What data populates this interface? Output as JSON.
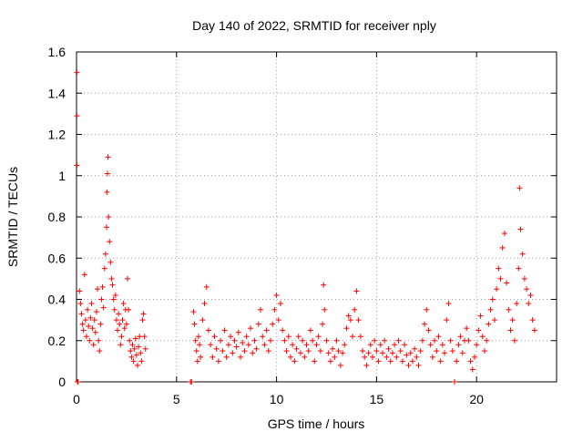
{
  "chart_data": {
    "type": "scatter",
    "title": "Day 140 of 2022, SRMTID for receiver nply",
    "xlabel": "GPS time / hours",
    "ylabel": "SRMTID / TECUs",
    "xlim": [
      0,
      24
    ],
    "ylim": [
      0,
      1.6
    ],
    "xticks": [
      0,
      5,
      10,
      15,
      20
    ],
    "xtick_labels": [
      "0",
      "5",
      "10",
      "15",
      "20"
    ],
    "yticks": [
      0,
      0.2,
      0.4,
      0.6,
      0.8,
      1.0,
      1.2,
      1.4,
      1.6
    ],
    "ytick_labels": [
      "0",
      "0.2",
      "0.4",
      "0.6",
      "0.8",
      "1",
      "1.2",
      "1.4",
      "1.6"
    ],
    "grid": true,
    "marker": "plus",
    "series": [
      {
        "name": "SRMTID",
        "color": "#ff0000",
        "points": [
          [
            0.02,
            1.5
          ],
          [
            0.02,
            1.29
          ],
          [
            0.02,
            1.05
          ],
          [
            0.05,
            0.0
          ],
          [
            0.08,
            0.0
          ],
          [
            0.15,
            0.44
          ],
          [
            0.2,
            0.38
          ],
          [
            0.25,
            0.33
          ],
          [
            0.3,
            0.28
          ],
          [
            0.35,
            0.25
          ],
          [
            0.4,
            0.52
          ],
          [
            0.45,
            0.3
          ],
          [
            0.5,
            0.22
          ],
          [
            0.55,
            0.35
          ],
          [
            0.6,
            0.27
          ],
          [
            0.65,
            0.2
          ],
          [
            0.7,
            0.31
          ],
          [
            0.75,
            0.38
          ],
          [
            0.8,
            0.26
          ],
          [
            0.85,
            0.18
          ],
          [
            0.9,
            0.3
          ],
          [
            0.95,
            0.24
          ],
          [
            1.0,
            0.34
          ],
          [
            1.05,
            0.45
          ],
          [
            1.1,
            0.2
          ],
          [
            1.15,
            0.15
          ],
          [
            1.2,
            0.28
          ],
          [
            1.25,
            0.4
          ],
          [
            1.3,
            0.46
          ],
          [
            1.35,
            0.36
          ],
          [
            1.4,
            0.55
          ],
          [
            1.45,
            0.62
          ],
          [
            1.5,
            0.75
          ],
          [
            1.52,
            0.92
          ],
          [
            1.55,
            1.01
          ],
          [
            1.57,
            1.09
          ],
          [
            1.6,
            0.8
          ],
          [
            1.65,
            0.68
          ],
          [
            1.7,
            0.58
          ],
          [
            1.75,
            0.5
          ],
          [
            1.8,
            0.47
          ],
          [
            1.85,
            0.4
          ],
          [
            1.9,
            0.35
          ],
          [
            1.95,
            0.42
          ],
          [
            2.0,
            0.3
          ],
          [
            2.05,
            0.25
          ],
          [
            2.1,
            0.33
          ],
          [
            2.15,
            0.28
          ],
          [
            2.2,
            0.18
          ],
          [
            2.25,
            0.22
          ],
          [
            2.3,
            0.3
          ],
          [
            2.35,
            0.38
          ],
          [
            2.4,
            0.26
          ],
          [
            2.45,
            0.35
          ],
          [
            2.5,
            0.28
          ],
          [
            2.55,
            0.5
          ],
          [
            2.6,
            0.35
          ],
          [
            2.65,
            0.2
          ],
          [
            2.7,
            0.15
          ],
          [
            2.75,
            0.12
          ],
          [
            2.8,
            0.18
          ],
          [
            2.85,
            0.1
          ],
          [
            2.9,
            0.16
          ],
          [
            2.95,
            0.21
          ],
          [
            3.0,
            0.13
          ],
          [
            3.05,
            0.08
          ],
          [
            3.1,
            0.17
          ],
          [
            3.15,
            0.22
          ],
          [
            3.2,
            0.14
          ],
          [
            3.25,
            0.1
          ],
          [
            3.3,
            0.3
          ],
          [
            3.35,
            0.33
          ],
          [
            3.4,
            0.22
          ],
          [
            3.45,
            0.16
          ],
          [
            5.7,
            0.0
          ],
          [
            5.75,
            0.0
          ],
          [
            5.85,
            0.34
          ],
          [
            5.9,
            0.28
          ],
          [
            5.95,
            0.2
          ],
          [
            6.0,
            0.15
          ],
          [
            6.05,
            0.1
          ],
          [
            6.1,
            0.22
          ],
          [
            6.15,
            0.18
          ],
          [
            6.2,
            0.12
          ],
          [
            6.3,
            0.3
          ],
          [
            6.4,
            0.38
          ],
          [
            6.5,
            0.46
          ],
          [
            6.6,
            0.25
          ],
          [
            6.7,
            0.18
          ],
          [
            6.8,
            0.12
          ],
          [
            6.9,
            0.22
          ],
          [
            7.0,
            0.16
          ],
          [
            7.1,
            0.1
          ],
          [
            7.2,
            0.2
          ],
          [
            7.3,
            0.15
          ],
          [
            7.4,
            0.25
          ],
          [
            7.5,
            0.12
          ],
          [
            7.6,
            0.18
          ],
          [
            7.7,
            0.22
          ],
          [
            7.8,
            0.14
          ],
          [
            7.9,
            0.2
          ],
          [
            8.0,
            0.17
          ],
          [
            8.1,
            0.24
          ],
          [
            8.2,
            0.12
          ],
          [
            8.3,
            0.19
          ],
          [
            8.4,
            0.15
          ],
          [
            8.5,
            0.22
          ],
          [
            8.6,
            0.18
          ],
          [
            8.7,
            0.26
          ],
          [
            8.8,
            0.14
          ],
          [
            8.9,
            0.2
          ],
          [
            9.0,
            0.16
          ],
          [
            9.1,
            0.28
          ],
          [
            9.2,
            0.35
          ],
          [
            9.3,
            0.22
          ],
          [
            9.4,
            0.18
          ],
          [
            9.5,
            0.25
          ],
          [
            9.6,
            0.15
          ],
          [
            9.7,
            0.2
          ],
          [
            9.8,
            0.28
          ],
          [
            9.9,
            0.35
          ],
          [
            10.0,
            0.42
          ],
          [
            10.1,
            0.3
          ],
          [
            10.2,
            0.38
          ],
          [
            10.3,
            0.25
          ],
          [
            10.4,
            0.2
          ],
          [
            10.5,
            0.15
          ],
          [
            10.6,
            0.22
          ],
          [
            10.7,
            0.12
          ],
          [
            10.8,
            0.18
          ],
          [
            10.9,
            0.1
          ],
          [
            11.0,
            0.16
          ],
          [
            11.1,
            0.22
          ],
          [
            11.2,
            0.14
          ],
          [
            11.3,
            0.2
          ],
          [
            11.4,
            0.12
          ],
          [
            11.5,
            0.18
          ],
          [
            11.6,
            0.15
          ],
          [
            11.7,
            0.25
          ],
          [
            11.8,
            0.2
          ],
          [
            11.9,
            0.1
          ],
          [
            12.0,
            0.18
          ],
          [
            12.1,
            0.22
          ],
          [
            12.2,
            0.15
          ],
          [
            12.3,
            0.28
          ],
          [
            12.35,
            0.47
          ],
          [
            12.4,
            0.35
          ],
          [
            12.5,
            0.2
          ],
          [
            12.6,
            0.14
          ],
          [
            12.7,
            0.1
          ],
          [
            12.8,
            0.16
          ],
          [
            12.9,
            0.12
          ],
          [
            13.0,
            0.2
          ],
          [
            13.1,
            0.15
          ],
          [
            13.2,
            0.08
          ],
          [
            13.3,
            0.14
          ],
          [
            13.4,
            0.18
          ],
          [
            13.5,
            0.26
          ],
          [
            13.6,
            0.32
          ],
          [
            13.7,
            0.3
          ],
          [
            13.8,
            0.22
          ],
          [
            13.9,
            0.35
          ],
          [
            14.0,
            0.44
          ],
          [
            14.1,
            0.3
          ],
          [
            14.2,
            0.22
          ],
          [
            14.3,
            0.15
          ],
          [
            14.4,
            0.12
          ],
          [
            14.5,
            0.08
          ],
          [
            14.6,
            0.14
          ],
          [
            14.7,
            0.18
          ],
          [
            14.8,
            0.12
          ],
          [
            14.9,
            0.2
          ],
          [
            15.0,
            0.15
          ],
          [
            15.1,
            0.1
          ],
          [
            15.2,
            0.18
          ],
          [
            15.3,
            0.14
          ],
          [
            15.4,
            0.2
          ],
          [
            15.5,
            0.12
          ],
          [
            15.6,
            0.16
          ],
          [
            15.7,
            0.1
          ],
          [
            15.8,
            0.14
          ],
          [
            15.9,
            0.18
          ],
          [
            16.0,
            0.12
          ],
          [
            16.1,
            0.2
          ],
          [
            16.2,
            0.15
          ],
          [
            16.3,
            0.1
          ],
          [
            16.4,
            0.18
          ],
          [
            16.5,
            0.13
          ],
          [
            16.6,
            0.08
          ],
          [
            16.7,
            0.14
          ],
          [
            16.8,
            0.1
          ],
          [
            16.9,
            0.16
          ],
          [
            17.0,
            0.12
          ],
          [
            17.1,
            0.08
          ],
          [
            17.2,
            0.15
          ],
          [
            17.3,
            0.2
          ],
          [
            17.4,
            0.28
          ],
          [
            17.5,
            0.35
          ],
          [
            17.6,
            0.25
          ],
          [
            17.7,
            0.18
          ],
          [
            17.8,
            0.12
          ],
          [
            17.9,
            0.2
          ],
          [
            18.0,
            0.15
          ],
          [
            18.1,
            0.22
          ],
          [
            18.2,
            0.1
          ],
          [
            18.3,
            0.18
          ],
          [
            18.4,
            0.14
          ],
          [
            18.5,
            0.3
          ],
          [
            18.6,
            0.38
          ],
          [
            18.7,
            0.2
          ],
          [
            18.8,
            0.15
          ],
          [
            18.9,
            0.0
          ],
          [
            19.0,
            0.1
          ],
          [
            19.1,
            0.18
          ],
          [
            19.2,
            0.22
          ],
          [
            19.3,
            0.14
          ],
          [
            19.4,
            0.2
          ],
          [
            19.5,
            0.26
          ],
          [
            19.6,
            0.2
          ],
          [
            19.7,
            0.1
          ],
          [
            19.8,
            0.06
          ],
          [
            19.9,
            0.12
          ],
          [
            20.0,
            0.18
          ],
          [
            20.1,
            0.25
          ],
          [
            20.2,
            0.32
          ],
          [
            20.3,
            0.22
          ],
          [
            20.4,
            0.15
          ],
          [
            20.5,
            0.2
          ],
          [
            20.6,
            0.28
          ],
          [
            20.7,
            0.35
          ],
          [
            20.8,
            0.4
          ],
          [
            20.9,
            0.3
          ],
          [
            21.0,
            0.45
          ],
          [
            21.1,
            0.55
          ],
          [
            21.2,
            0.5
          ],
          [
            21.3,
            0.65
          ],
          [
            21.4,
            0.72
          ],
          [
            21.5,
            0.48
          ],
          [
            21.6,
            0.35
          ],
          [
            21.7,
            0.25
          ],
          [
            21.8,
            0.3
          ],
          [
            21.9,
            0.2
          ],
          [
            22.0,
            0.38
          ],
          [
            22.1,
            0.55
          ],
          [
            22.15,
            0.94
          ],
          [
            22.2,
            0.74
          ],
          [
            22.3,
            0.62
          ],
          [
            22.4,
            0.5
          ],
          [
            22.5,
            0.45
          ],
          [
            22.6,
            0.38
          ],
          [
            22.7,
            0.42
          ],
          [
            22.8,
            0.3
          ],
          [
            22.9,
            0.25
          ]
        ]
      }
    ]
  }
}
